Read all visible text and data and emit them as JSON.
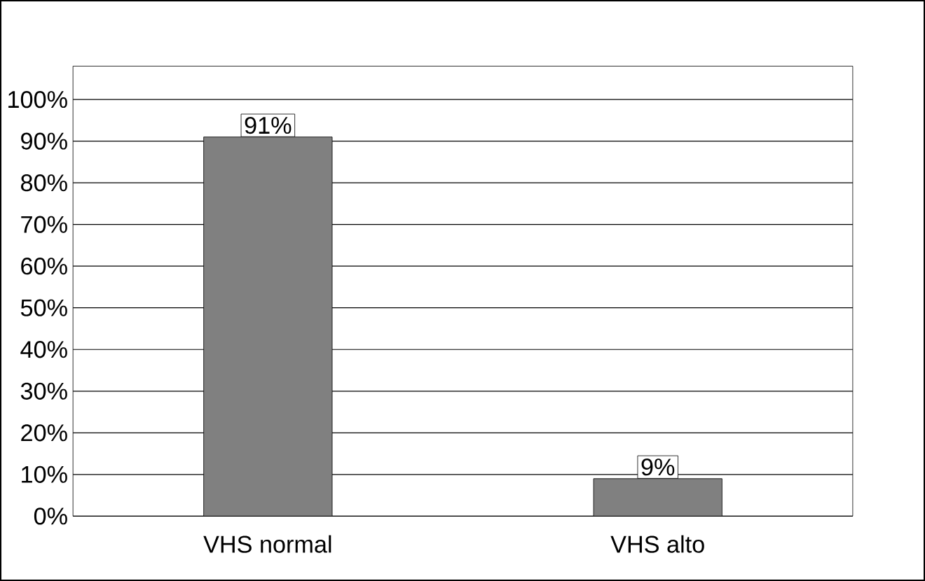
{
  "chart_data": {
    "type": "bar",
    "categories": [
      "VHS normal",
      "VHS alto"
    ],
    "values": [
      91,
      9
    ],
    "value_labels": [
      "91%",
      "9%"
    ],
    "color": "#808080",
    "ylim": [
      0,
      100
    ],
    "yticks": [
      {
        "value": 0,
        "label": "0%"
      },
      {
        "value": 10,
        "label": "10%"
      },
      {
        "value": 20,
        "label": "20%"
      },
      {
        "value": 30,
        "label": "30%"
      },
      {
        "value": 40,
        "label": "40%"
      },
      {
        "value": 50,
        "label": "50%"
      },
      {
        "value": 60,
        "label": "60%"
      },
      {
        "value": 70,
        "label": "70%"
      },
      {
        "value": 80,
        "label": "80%"
      },
      {
        "value": 90,
        "label": "90%"
      },
      {
        "value": 100,
        "label": "100%"
      }
    ],
    "grid": "y"
  }
}
